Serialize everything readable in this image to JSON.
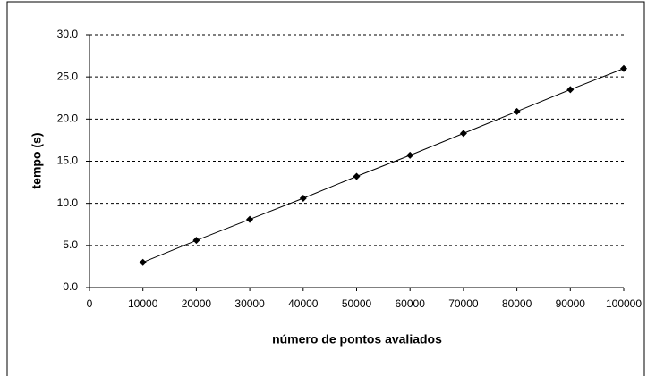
{
  "chart_data": {
    "type": "line",
    "xlabel": "número de pontos avaliados",
    "ylabel": "tempo (s)",
    "x": [
      10000,
      20000,
      30000,
      40000,
      50000,
      60000,
      70000,
      80000,
      90000,
      100000
    ],
    "series": [
      {
        "color": "#000000",
        "values": [
          3.0,
          5.6,
          8.1,
          10.6,
          13.2,
          15.7,
          18.3,
          20.9,
          23.5,
          26.0
        ]
      }
    ],
    "xlim": [
      0,
      100000
    ],
    "xticks": [
      0,
      10000,
      20000,
      30000,
      40000,
      50000,
      60000,
      70000,
      80000,
      90000,
      100000
    ],
    "ylim": [
      0,
      30
    ],
    "yticks": [
      {
        "value": 0,
        "label": "0.0"
      },
      {
        "value": 5,
        "label": "5.0"
      },
      {
        "value": 10,
        "label": "10.0"
      },
      {
        "value": 15,
        "label": "15.0"
      },
      {
        "value": 20,
        "label": "20.0"
      },
      {
        "value": 25,
        "label": "25.0"
      },
      {
        "value": 30,
        "label": "30.0"
      }
    ],
    "grid": true
  }
}
